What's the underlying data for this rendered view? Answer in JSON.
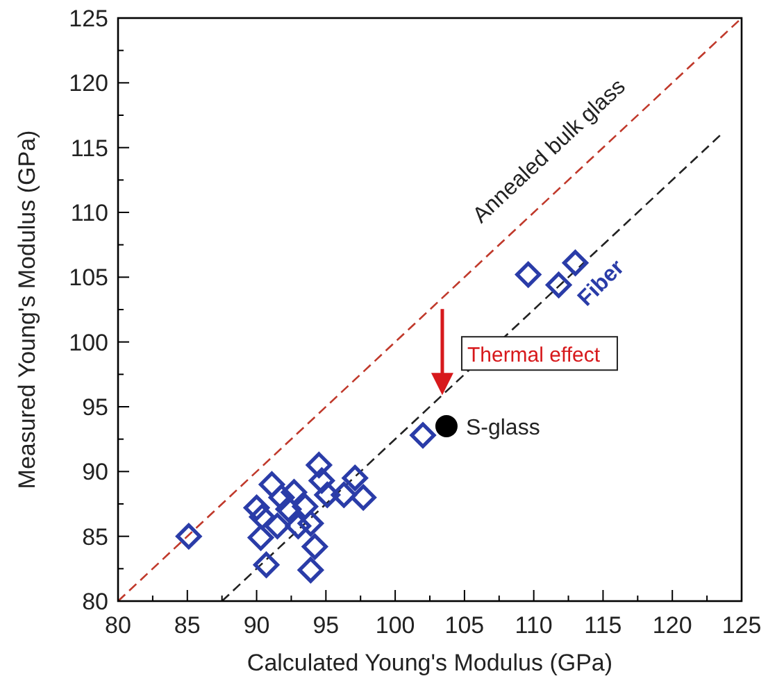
{
  "chart_data": {
    "type": "scatter",
    "xlabel": "Calculated Young's Modulus (GPa)",
    "ylabel": "Measured Young's Modulus (GPa)",
    "xlim": [
      80,
      125
    ],
    "ylim": [
      80,
      125
    ],
    "xticks": [
      80,
      {
        "value": 82.5,
        "label": null
      },
      85,
      {
        "value": 87.5,
        "label": null
      },
      90,
      {
        "value": 92.5,
        "label": null
      },
      95,
      {
        "value": 97.5,
        "label": null
      },
      100,
      {
        "value": 102.5,
        "label": null
      },
      105,
      {
        "value": 107.5,
        "label": null
      },
      110,
      {
        "value": 112.5,
        "label": null
      },
      115,
      {
        "value": 117.5,
        "label": null
      },
      120,
      {
        "value": 122.5,
        "label": null
      },
      125
    ],
    "yticks": [
      80,
      {
        "value": 82.5,
        "label": null
      },
      85,
      {
        "value": 87.5,
        "label": null
      },
      90,
      {
        "value": 92.5,
        "label": null
      },
      95,
      {
        "value": 97.5,
        "label": null
      },
      100,
      {
        "value": 102.5,
        "label": null
      },
      105,
      {
        "value": 107.5,
        "label": null
      },
      110,
      {
        "value": 112.5,
        "label": null
      },
      115,
      {
        "value": 117.5,
        "label": null
      },
      120,
      {
        "value": 122.5,
        "label": null
      },
      125
    ],
    "grid": false,
    "series": [
      {
        "type": "line",
        "name": "Annealed bulk glass",
        "color": "#c0392b",
        "line_style": "dashed",
        "marker": "none",
        "x": [
          80,
          125
        ],
        "values": [
          80,
          125
        ]
      },
      {
        "type": "line",
        "color": "#222222",
        "line_style": "dashed",
        "marker": "none",
        "x": [
          87.5,
          123.5
        ],
        "values": [
          80,
          116
        ]
      },
      {
        "name": "Fiber",
        "color": "#2a3ca8",
        "marker": "diamond",
        "x": [
          85.1,
          90.7,
          90.3,
          90.0,
          90.4,
          91.1,
          91.5,
          91.8,
          92.7,
          92.3,
          93.0,
          93.5,
          93.9,
          94.2,
          93.9,
          94.5,
          94.7,
          95.1,
          96.3,
          97.1,
          97.7,
          102.0,
          109.6,
          111.8,
          113.0
        ],
        "values": [
          85.0,
          82.8,
          84.9,
          87.2,
          86.5,
          89.0,
          85.8,
          88.0,
          88.4,
          87.1,
          85.8,
          87.3,
          86.0,
          84.2,
          82.4,
          90.5,
          89.3,
          88.2,
          88.2,
          89.5,
          88.0,
          92.8,
          105.2,
          104.4,
          106.1
        ]
      },
      {
        "name": "S-glass",
        "color": "#000000",
        "marker": "circle",
        "x": [
          103.7
        ],
        "values": [
          93.5
        ]
      }
    ],
    "annotations": [
      {
        "text": "Thermal effect",
        "x": 103.4,
        "y": 95.9
      }
    ]
  }
}
